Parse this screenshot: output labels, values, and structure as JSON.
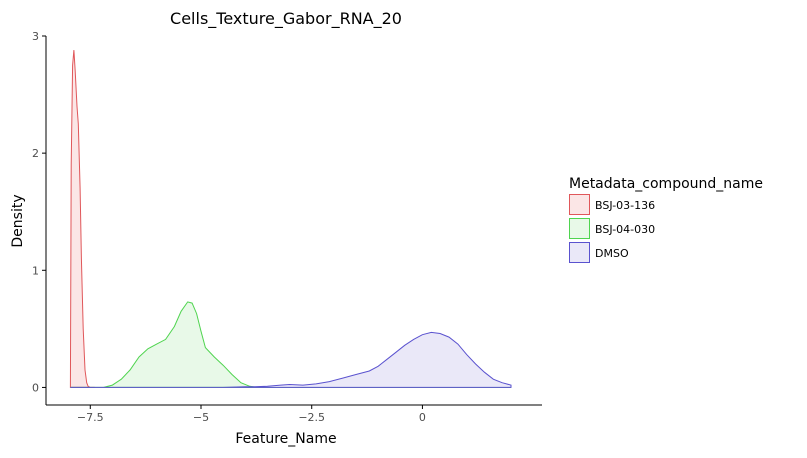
{
  "chart_data": {
    "type": "area",
    "title": "Cells_Texture_Gabor_RNA_20",
    "xlabel": "Feature_Name",
    "ylabel": "Density",
    "xlim": [
      -8.5,
      2.7
    ],
    "ylim": [
      -0.15,
      3.0
    ],
    "xticks": [
      -7.5,
      -5,
      -2.5,
      0
    ],
    "xtick_labels": [
      "−7.5",
      "−5",
      "−2.5",
      "0"
    ],
    "yticks": [
      0,
      1,
      2,
      3
    ],
    "ytick_labels": [
      "0",
      "1",
      "2",
      "3"
    ],
    "grid": false,
    "legend_title": "Metadata_compound_name",
    "legend_position": "right",
    "series": [
      {
        "name": "BSJ-03-136",
        "color": "#e0575a",
        "fill": "#fbe6e6",
        "x": [
          -7.95,
          -7.93,
          -7.9,
          -7.87,
          -7.84,
          -7.8,
          -7.77,
          -7.73,
          -7.7,
          -7.66,
          -7.62,
          -7.58,
          -7.55,
          -7.5,
          -7.45,
          -7.4
        ],
        "y": [
          0,
          1.9,
          2.75,
          2.88,
          2.7,
          2.4,
          2.25,
          1.7,
          1.1,
          0.5,
          0.15,
          0.04,
          0.01,
          0,
          0,
          0
        ]
      },
      {
        "name": "BSJ-04-030",
        "color": "#4fd44f",
        "fill": "#e8f9e8",
        "x": [
          -7.95,
          -7.2,
          -7.0,
          -6.8,
          -6.6,
          -6.4,
          -6.2,
          -6.0,
          -5.8,
          -5.6,
          -5.45,
          -5.3,
          -5.2,
          -5.1,
          -5.0,
          -4.9,
          -4.7,
          -4.5,
          -4.3,
          -4.1,
          -3.9,
          -3.7,
          -3.5,
          2.0
        ],
        "y": [
          0,
          0,
          0.02,
          0.07,
          0.15,
          0.26,
          0.33,
          0.37,
          0.41,
          0.52,
          0.65,
          0.73,
          0.72,
          0.63,
          0.48,
          0.34,
          0.26,
          0.19,
          0.11,
          0.04,
          0.01,
          0,
          0,
          0
        ]
      },
      {
        "name": "DMSO",
        "color": "#5a52cf",
        "fill": "#eae8f8",
        "x": [
          -7.95,
          -4.5,
          -4.0,
          -3.8,
          -3.5,
          -3.2,
          -3.0,
          -2.7,
          -2.4,
          -2.1,
          -1.8,
          -1.5,
          -1.2,
          -1.0,
          -0.8,
          -0.6,
          -0.4,
          -0.2,
          0.0,
          0.2,
          0.4,
          0.6,
          0.8,
          1.0,
          1.2,
          1.4,
          1.6,
          1.8,
          2.0
        ],
        "y": [
          0,
          0,
          0.005,
          0.005,
          0.01,
          0.02,
          0.025,
          0.02,
          0.03,
          0.05,
          0.08,
          0.11,
          0.14,
          0.18,
          0.24,
          0.3,
          0.36,
          0.41,
          0.45,
          0.47,
          0.46,
          0.43,
          0.37,
          0.28,
          0.2,
          0.13,
          0.07,
          0.04,
          0.02
        ]
      }
    ]
  }
}
